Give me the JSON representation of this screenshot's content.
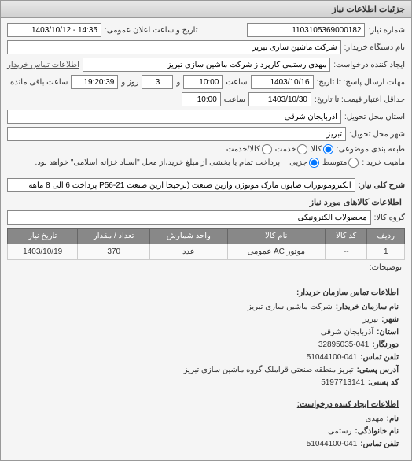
{
  "panel": {
    "title": "جزئیات اطلاعات نیاز"
  },
  "header": {
    "number_label": "شماره نیاز:",
    "number_value": "1103105369000182",
    "announce_label": "تاریخ و ساعت اعلان عمومی:",
    "announce_value": "14:35 - 1403/10/12",
    "buyer_org_label": "نام دستگاه خریدار:",
    "buyer_org_value": "شرکت ماشین سازی تبریز",
    "creator_label": "ایجاد کننده درخواست:",
    "creator_value": "مهدی رستمی کارپرداز شرکت ماشین سازی تبریز",
    "contact_link": "اطلاعات تماس خریدار",
    "deadline_date_label": "مهلت ارسال پاسخ: تا تاریخ:",
    "deadline_date_value": "1403/10/16",
    "deadline_time_label": "ساعت",
    "deadline_time_value": "10:00",
    "validity_date_label_prefix": "و",
    "remaining_days_value": "3",
    "remaining_days_label": "روز و",
    "remaining_time_value": "19:20:39",
    "remaining_time_label": "ساعت باقی مانده",
    "bid_deadline_label": "حداقل اعتبار قیمت: تا تاریخ:",
    "bid_deadline_date": "1403/10/30",
    "bid_deadline_time": "10:00",
    "province_label": "استان محل تحویل:",
    "province_value": "آذربایجان شرقی",
    "city_label": "شهر محل تحویل:",
    "city_value": "تبریز",
    "budget_type_label": "طبقه بندی موضوعی:",
    "budget_opts": {
      "kala": "کالا",
      "khadmat": "خدمت",
      "kala_khadmat": "کالا/خدمت"
    },
    "purchase_type_label": "ماهیت خرید :",
    "purchase_opts": {
      "medium": "متوسط",
      "partial": "جزیی"
    },
    "note_text": "پرداخت تمام یا بخشی از مبلغ خرید،از محل \"اسناد خزانه اسلامی\" خواهد بود."
  },
  "need": {
    "subject_label": "شرح کلی نیاز:",
    "subject_value": "الکتروموتورآب صابون مارک موتوژن وآرین صنعت (ترجیحا آرین صنعت P56-21 پرداخت 6 الی 8 ماهه",
    "items_title": "اطلاعات کالاهای مورد نیاز",
    "group_label": "گروه کالا:",
    "group_value": "محصولات الکترونیکی"
  },
  "table": {
    "columns": [
      "ردیف",
      "کد کالا",
      "نام کالا",
      "واحد شمارش",
      "تعداد / مقدار",
      "تاریخ نیاز"
    ],
    "rows": [
      [
        "1",
        "--",
        "موتور AC عمومی",
        "عدد",
        "370",
        "1403/10/19"
      ]
    ]
  },
  "footnote": "توضیحات:",
  "contact_buyer": {
    "title": "اطلاعات تماس سازمان خریدار:",
    "lines": [
      {
        "k": "نام سازمان خریدار:",
        "v": "شرکت ماشین سازی تبریز"
      },
      {
        "k": "شهر:",
        "v": "تبریز"
      },
      {
        "k": "استان:",
        "v": "آذربایجان شرقی"
      },
      {
        "k": "دورنگار:",
        "v": "32895035-041"
      },
      {
        "k": "تلفن تماس:",
        "v": "51044100-041"
      },
      {
        "k": "آدرس پستی:",
        "v": "تبریز منطقه صنعتی قراملک گروه ماشین سازی تبریز"
      },
      {
        "k": "کد پستی:",
        "v": "5197713141"
      }
    ]
  },
  "contact_creator": {
    "title": "اطلاعات ایجاد کننده درخواست:",
    "lines": [
      {
        "k": "نام:",
        "v": "مهدی"
      },
      {
        "k": "نام خانوادگی:",
        "v": "رستمی"
      },
      {
        "k": "تلفن تماس:",
        "v": "51044100-041"
      }
    ]
  }
}
